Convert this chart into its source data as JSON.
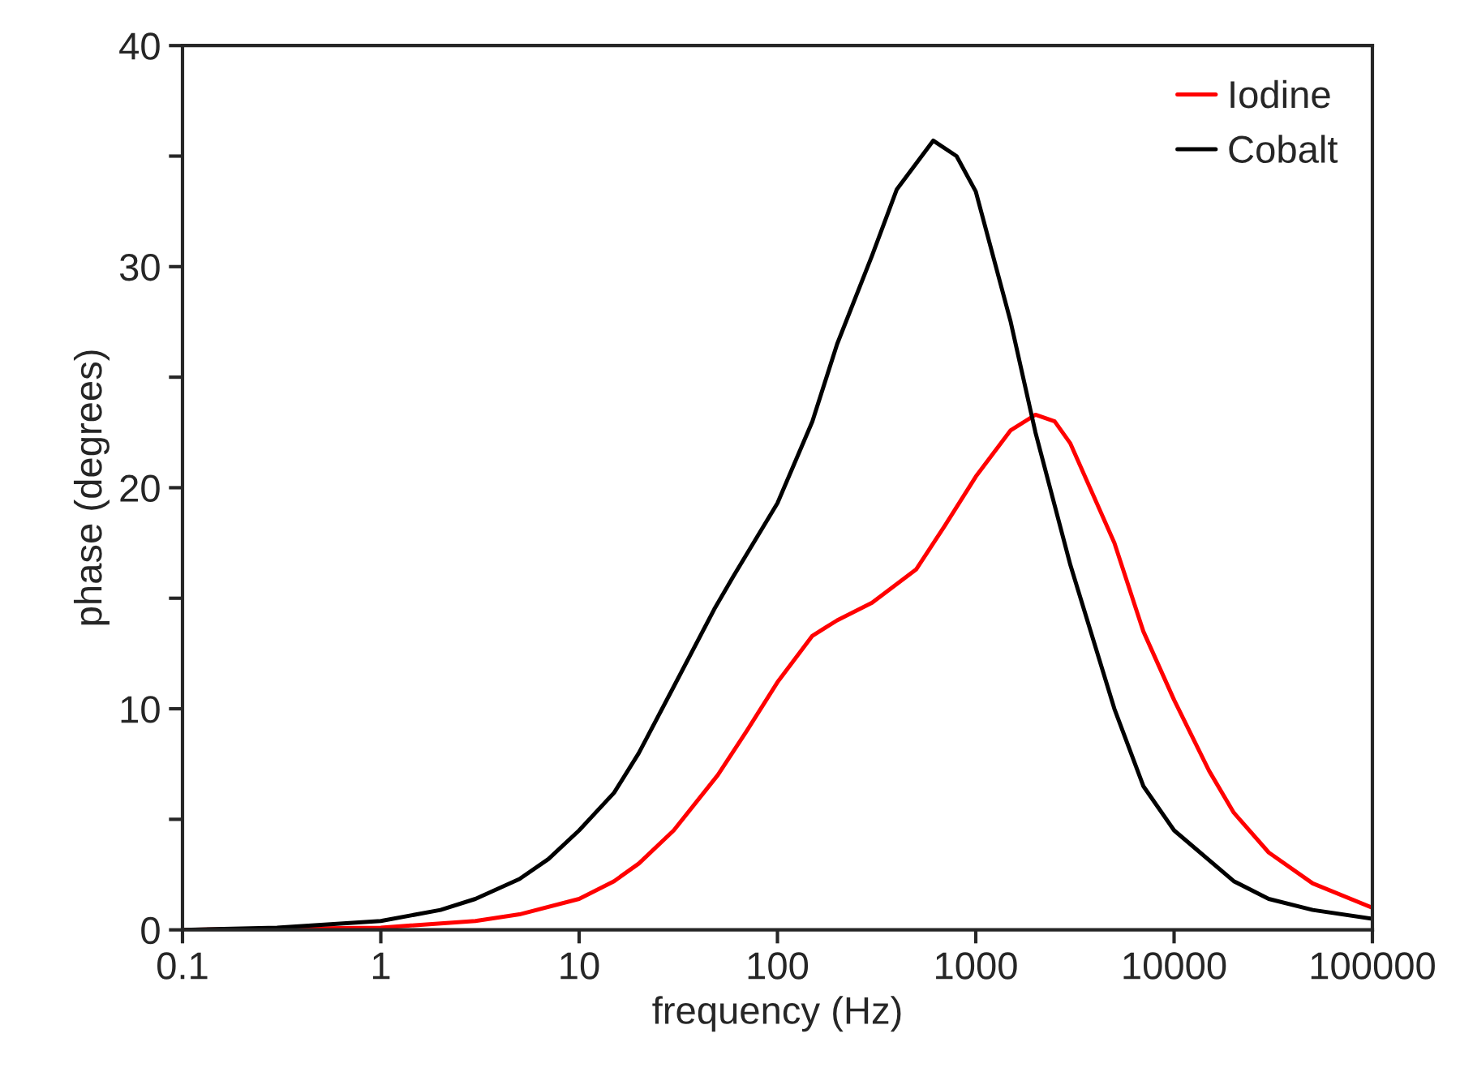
{
  "chart_data": {
    "type": "line",
    "xlabel": "frequency (Hz)",
    "ylabel": "phase (degrees)",
    "log": "x",
    "xlim": [
      0.1,
      100000
    ],
    "xticks": [
      {
        "value": 0.1,
        "label": "0.1"
      },
      1,
      10,
      100,
      1000,
      10000,
      100000
    ],
    "ylim": [
      0,
      40
    ],
    "yticks": [
      0,
      {
        "value": 5,
        "label": null
      },
      10,
      {
        "value": 15,
        "label": null
      },
      20,
      {
        "value": 25,
        "label": null
      },
      30,
      {
        "value": 35,
        "label": null
      },
      40
    ],
    "grid": false,
    "legend": "top right",
    "marker": "none",
    "line_style": "solid",
    "series": [
      {
        "name": "Iodine",
        "color": "#ff0000",
        "x": [
          0.1,
          1,
          3,
          5,
          10,
          15,
          20,
          30,
          50,
          70,
          100,
          150,
          200,
          300,
          500,
          700,
          1000,
          1500,
          2000,
          2500,
          3000,
          5000,
          7000,
          10000,
          15000,
          20000,
          30000,
          50000,
          100000
        ],
        "values": [
          0,
          0.1,
          0.4,
          0.7,
          1.4,
          2.2,
          3,
          4.5,
          7,
          9,
          11.2,
          13.3,
          14,
          14.8,
          16.3,
          18.3,
          20.5,
          22.6,
          23.3,
          23,
          22,
          17.5,
          13.5,
          10.4,
          7.2,
          5.3,
          3.5,
          2.1,
          1
        ]
      },
      {
        "name": "Cobalt",
        "color": "#000000",
        "x": [
          0.1,
          0.3,
          1,
          2,
          3,
          5,
          7,
          10,
          15,
          20,
          30,
          48,
          60,
          100,
          150,
          200,
          300,
          400,
          610,
          800,
          1000,
          1500,
          2000,
          3000,
          5000,
          7000,
          10000,
          20000,
          30000,
          50000,
          100000
        ],
        "values": [
          0,
          0.1,
          0.4,
          0.9,
          1.4,
          2.3,
          3.2,
          4.5,
          6.2,
          8,
          11,
          14.5,
          16,
          19.3,
          23,
          26.5,
          30.5,
          33.5,
          35.7,
          35,
          33.4,
          27.5,
          22.5,
          16.5,
          10,
          6.5,
          4.5,
          2.2,
          1.4,
          0.9,
          0.5
        ]
      }
    ]
  }
}
